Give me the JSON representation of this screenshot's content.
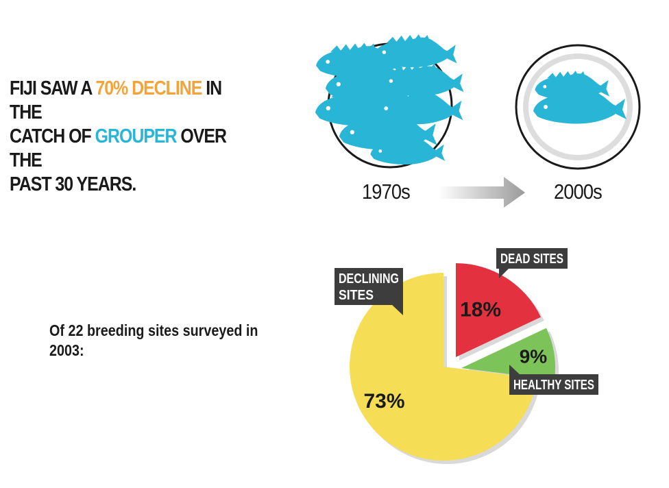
{
  "headline": {
    "line1_a": "FIJI SAW A ",
    "line1_highlight": "70% DECLINE",
    "line1_b": " IN THE",
    "line2_a": "CATCH OF ",
    "line2_highlight": "GROUPER",
    "line2_b": " OVER THE",
    "line3": "PAST 30 YEARS."
  },
  "comparison": {
    "before_label": "1970s",
    "after_label": "2000s",
    "icon": "fish-plate-icon",
    "arrow_icon": "right-arrow-icon"
  },
  "subtext": "Of 22 breeding sites surveyed in 2003:",
  "colors": {
    "orange": "#f2a33a",
    "blue": "#29b5d6",
    "dead": "#e3313f",
    "healthy": "#7cc45a",
    "declining": "#f5dd55",
    "tag": "#3d3d3d"
  },
  "chart_data": {
    "type": "pie",
    "slices": [
      {
        "name": "DEAD SITES",
        "value": 18,
        "label": "18%"
      },
      {
        "name": "HEALTHY SITES",
        "value": 9,
        "label": "9%"
      },
      {
        "name": "DECLINING SITES",
        "value": 73,
        "label": "73%"
      }
    ],
    "tags": {
      "dead": "DEAD SITES",
      "healthy": "HEALTHY SITES",
      "declining_1": "DECLINING",
      "declining_2": "SITES"
    }
  }
}
